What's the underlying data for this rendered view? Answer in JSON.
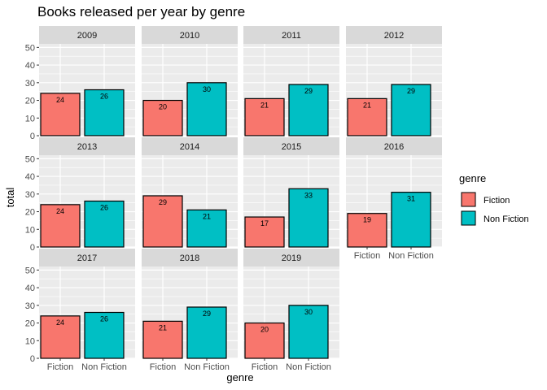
{
  "chart_data": {
    "type": "bar",
    "title": "Books released per year by genre",
    "xlabel": "genre",
    "ylabel": "total",
    "ylim": [
      0,
      52
    ],
    "yticks": [
      0,
      10,
      20,
      30,
      40,
      50
    ],
    "categories": [
      "Fiction",
      "Non Fiction"
    ],
    "colors": {
      "Fiction": "#F8766D",
      "Non Fiction": "#00BFC4"
    },
    "facet_background": "#EBEBEB",
    "strip_background": "#D9D9D9",
    "legend": {
      "title": "genre",
      "position": "right",
      "entries": [
        "Fiction",
        "Non Fiction"
      ]
    },
    "facets": [
      {
        "label": "2009",
        "values": [
          24,
          26
        ]
      },
      {
        "label": "2010",
        "values": [
          20,
          30
        ]
      },
      {
        "label": "2011",
        "values": [
          21,
          29
        ]
      },
      {
        "label": "2012",
        "values": [
          21,
          29
        ]
      },
      {
        "label": "2013",
        "values": [
          24,
          26
        ]
      },
      {
        "label": "2014",
        "values": [
          29,
          21
        ]
      },
      {
        "label": "2015",
        "values": [
          17,
          33
        ]
      },
      {
        "label": "2016",
        "values": [
          19,
          31
        ]
      },
      {
        "label": "2017",
        "values": [
          24,
          26
        ]
      },
      {
        "label": "2018",
        "values": [
          21,
          29
        ]
      },
      {
        "label": "2019",
        "values": [
          20,
          30
        ]
      }
    ]
  }
}
